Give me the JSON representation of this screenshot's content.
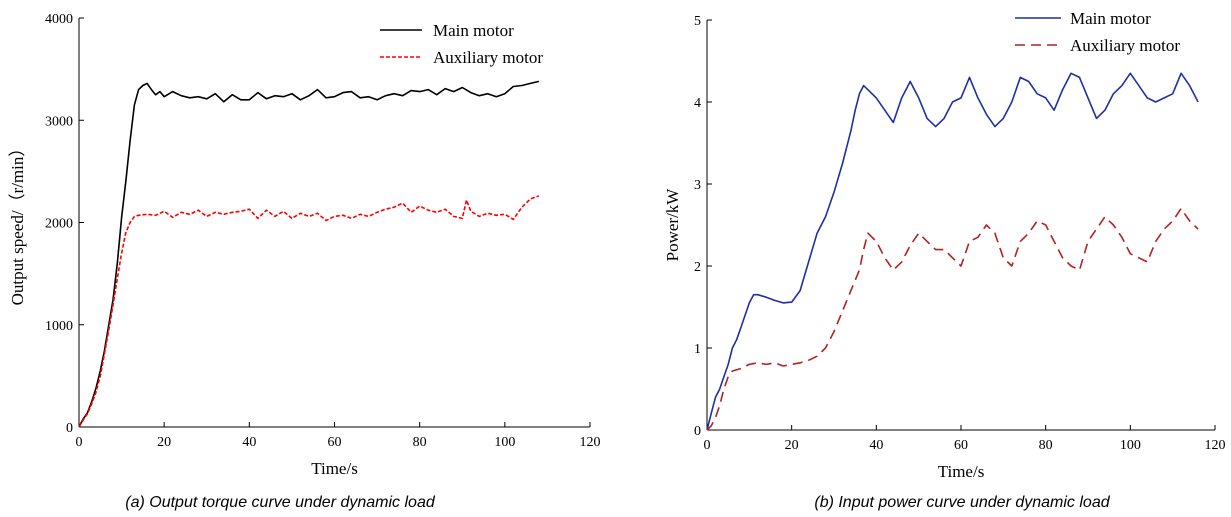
{
  "chart_data": [
    {
      "type": "line",
      "caption": "(a) Output torque curve under dynamic load",
      "xlabel": "Time/s",
      "ylabel": "Output speed/（r/min）",
      "xlim": [
        0,
        120
      ],
      "ylim": [
        0,
        4000
      ],
      "xticks": [
        0,
        20,
        40,
        60,
        80,
        100,
        120
      ],
      "yticks": [
        0,
        1000,
        2000,
        3000,
        4000
      ],
      "legend_position": "top-right",
      "series": [
        {
          "name": "Main motor",
          "color": "#000000",
          "dash": "solid",
          "x": [
            0,
            1,
            2,
            3,
            4,
            5,
            6,
            7,
            8,
            9,
            10,
            11,
            12,
            13,
            14,
            15,
            16,
            17,
            18,
            19,
            20,
            22,
            24,
            26,
            28,
            30,
            32,
            34,
            36,
            38,
            40,
            42,
            44,
            46,
            48,
            50,
            52,
            54,
            56,
            58,
            60,
            62,
            64,
            66,
            68,
            70,
            72,
            74,
            76,
            78,
            80,
            82,
            84,
            86,
            88,
            90,
            92,
            94,
            96,
            98,
            100,
            102,
            104,
            106,
            108
          ],
          "y": [
            0,
            80,
            140,
            250,
            380,
            550,
            750,
            1000,
            1250,
            1600,
            2050,
            2400,
            2800,
            3150,
            3300,
            3340,
            3360,
            3300,
            3250,
            3280,
            3230,
            3280,
            3240,
            3220,
            3230,
            3210,
            3260,
            3180,
            3250,
            3200,
            3200,
            3270,
            3210,
            3240,
            3230,
            3260,
            3200,
            3240,
            3300,
            3220,
            3230,
            3270,
            3280,
            3220,
            3230,
            3200,
            3240,
            3260,
            3240,
            3290,
            3280,
            3300,
            3250,
            3310,
            3280,
            3320,
            3270,
            3240,
            3260,
            3230,
            3260,
            3330,
            3340,
            3360,
            3380
          ]
        },
        {
          "name": "Auxiliary motor",
          "color": "#ff0000",
          "dash": "dashed",
          "x": [
            0,
            1,
            2,
            3,
            4,
            5,
            6,
            7,
            8,
            9,
            10,
            11,
            12,
            13,
            14,
            16,
            18,
            20,
            22,
            24,
            26,
            28,
            30,
            32,
            34,
            36,
            38,
            40,
            42,
            44,
            46,
            48,
            50,
            52,
            54,
            56,
            58,
            60,
            62,
            64,
            66,
            68,
            70,
            72,
            74,
            76,
            78,
            80,
            82,
            84,
            86,
            88,
            90,
            91,
            92,
            94,
            96,
            98,
            100,
            102,
            104,
            106,
            108
          ],
          "y": [
            0,
            70,
            130,
            230,
            340,
            500,
            720,
            950,
            1200,
            1450,
            1700,
            1900,
            2000,
            2060,
            2070,
            2080,
            2070,
            2110,
            2050,
            2100,
            2080,
            2120,
            2060,
            2100,
            2080,
            2100,
            2110,
            2130,
            2040,
            2120,
            2060,
            2110,
            2040,
            2090,
            2060,
            2090,
            2020,
            2060,
            2070,
            2040,
            2080,
            2060,
            2100,
            2130,
            2150,
            2190,
            2100,
            2160,
            2120,
            2100,
            2130,
            2060,
            2040,
            2220,
            2110,
            2060,
            2090,
            2070,
            2080,
            2030,
            2150,
            2230,
            2260
          ]
        }
      ]
    },
    {
      "type": "line",
      "caption": "(b) Input power curve under dynamic load",
      "xlabel": "Time/s",
      "ylabel": "Power/kW",
      "xlim": [
        0,
        120
      ],
      "ylim": [
        0,
        5
      ],
      "xticks": [
        0,
        20,
        40,
        60,
        80,
        100,
        120
      ],
      "yticks": [
        0,
        1,
        2,
        3,
        4,
        5
      ],
      "legend_position": "top-right",
      "series": [
        {
          "name": "Main motor",
          "color": "#1f2fa6",
          "dash": "solid",
          "x": [
            0,
            1,
            2,
            3,
            4,
            5,
            6,
            7,
            8,
            9,
            10,
            11,
            12,
            14,
            16,
            18,
            20,
            22,
            24,
            26,
            28,
            30,
            32,
            34,
            35,
            36,
            37,
            38,
            40,
            42,
            44,
            46,
            48,
            50,
            52,
            54,
            56,
            58,
            60,
            62,
            64,
            66,
            68,
            70,
            72,
            74,
            76,
            78,
            80,
            82,
            84,
            86,
            88,
            90,
            92,
            94,
            96,
            98,
            100,
            102,
            104,
            106,
            108,
            110,
            112,
            114,
            116
          ],
          "y": [
            0,
            0.2,
            0.4,
            0.5,
            0.65,
            0.8,
            1.0,
            1.1,
            1.25,
            1.4,
            1.55,
            1.65,
            1.65,
            1.62,
            1.58,
            1.55,
            1.56,
            1.7,
            2.05,
            2.4,
            2.6,
            2.9,
            3.25,
            3.65,
            3.9,
            4.1,
            4.2,
            4.15,
            4.05,
            3.9,
            3.75,
            4.05,
            4.25,
            4.05,
            3.8,
            3.7,
            3.8,
            4.0,
            4.05,
            4.3,
            4.05,
            3.85,
            3.7,
            3.8,
            4.0,
            4.3,
            4.25,
            4.1,
            4.05,
            3.9,
            4.15,
            4.35,
            4.3,
            4.05,
            3.8,
            3.9,
            4.1,
            4.2,
            4.35,
            4.2,
            4.05,
            4.0,
            4.05,
            4.1,
            4.35,
            4.2,
            4.0
          ]
        },
        {
          "name": "Auxiliary motor",
          "color": "#b22222",
          "dash": "dashed",
          "x": [
            0,
            1,
            2,
            3,
            4,
            5,
            6,
            8,
            10,
            12,
            14,
            16,
            18,
            20,
            22,
            24,
            26,
            28,
            30,
            32,
            34,
            36,
            37,
            38,
            40,
            42,
            44,
            46,
            48,
            50,
            52,
            54,
            56,
            58,
            60,
            62,
            64,
            66,
            68,
            70,
            72,
            74,
            76,
            78,
            80,
            82,
            84,
            86,
            88,
            90,
            92,
            94,
            96,
            98,
            100,
            102,
            104,
            106,
            108,
            110,
            112,
            114,
            116
          ],
          "y": [
            0,
            0.05,
            0.15,
            0.3,
            0.5,
            0.65,
            0.72,
            0.75,
            0.8,
            0.82,
            0.8,
            0.82,
            0.78,
            0.8,
            0.82,
            0.85,
            0.9,
            1.0,
            1.2,
            1.45,
            1.7,
            1.95,
            2.2,
            2.4,
            2.3,
            2.1,
            1.95,
            2.05,
            2.25,
            2.4,
            2.3,
            2.2,
            2.2,
            2.1,
            2.0,
            2.3,
            2.35,
            2.5,
            2.4,
            2.1,
            2.0,
            2.3,
            2.4,
            2.55,
            2.5,
            2.3,
            2.1,
            2.0,
            1.95,
            2.3,
            2.45,
            2.6,
            2.5,
            2.35,
            2.15,
            2.1,
            2.05,
            2.3,
            2.45,
            2.55,
            2.7,
            2.55,
            2.45
          ]
        }
      ]
    }
  ]
}
